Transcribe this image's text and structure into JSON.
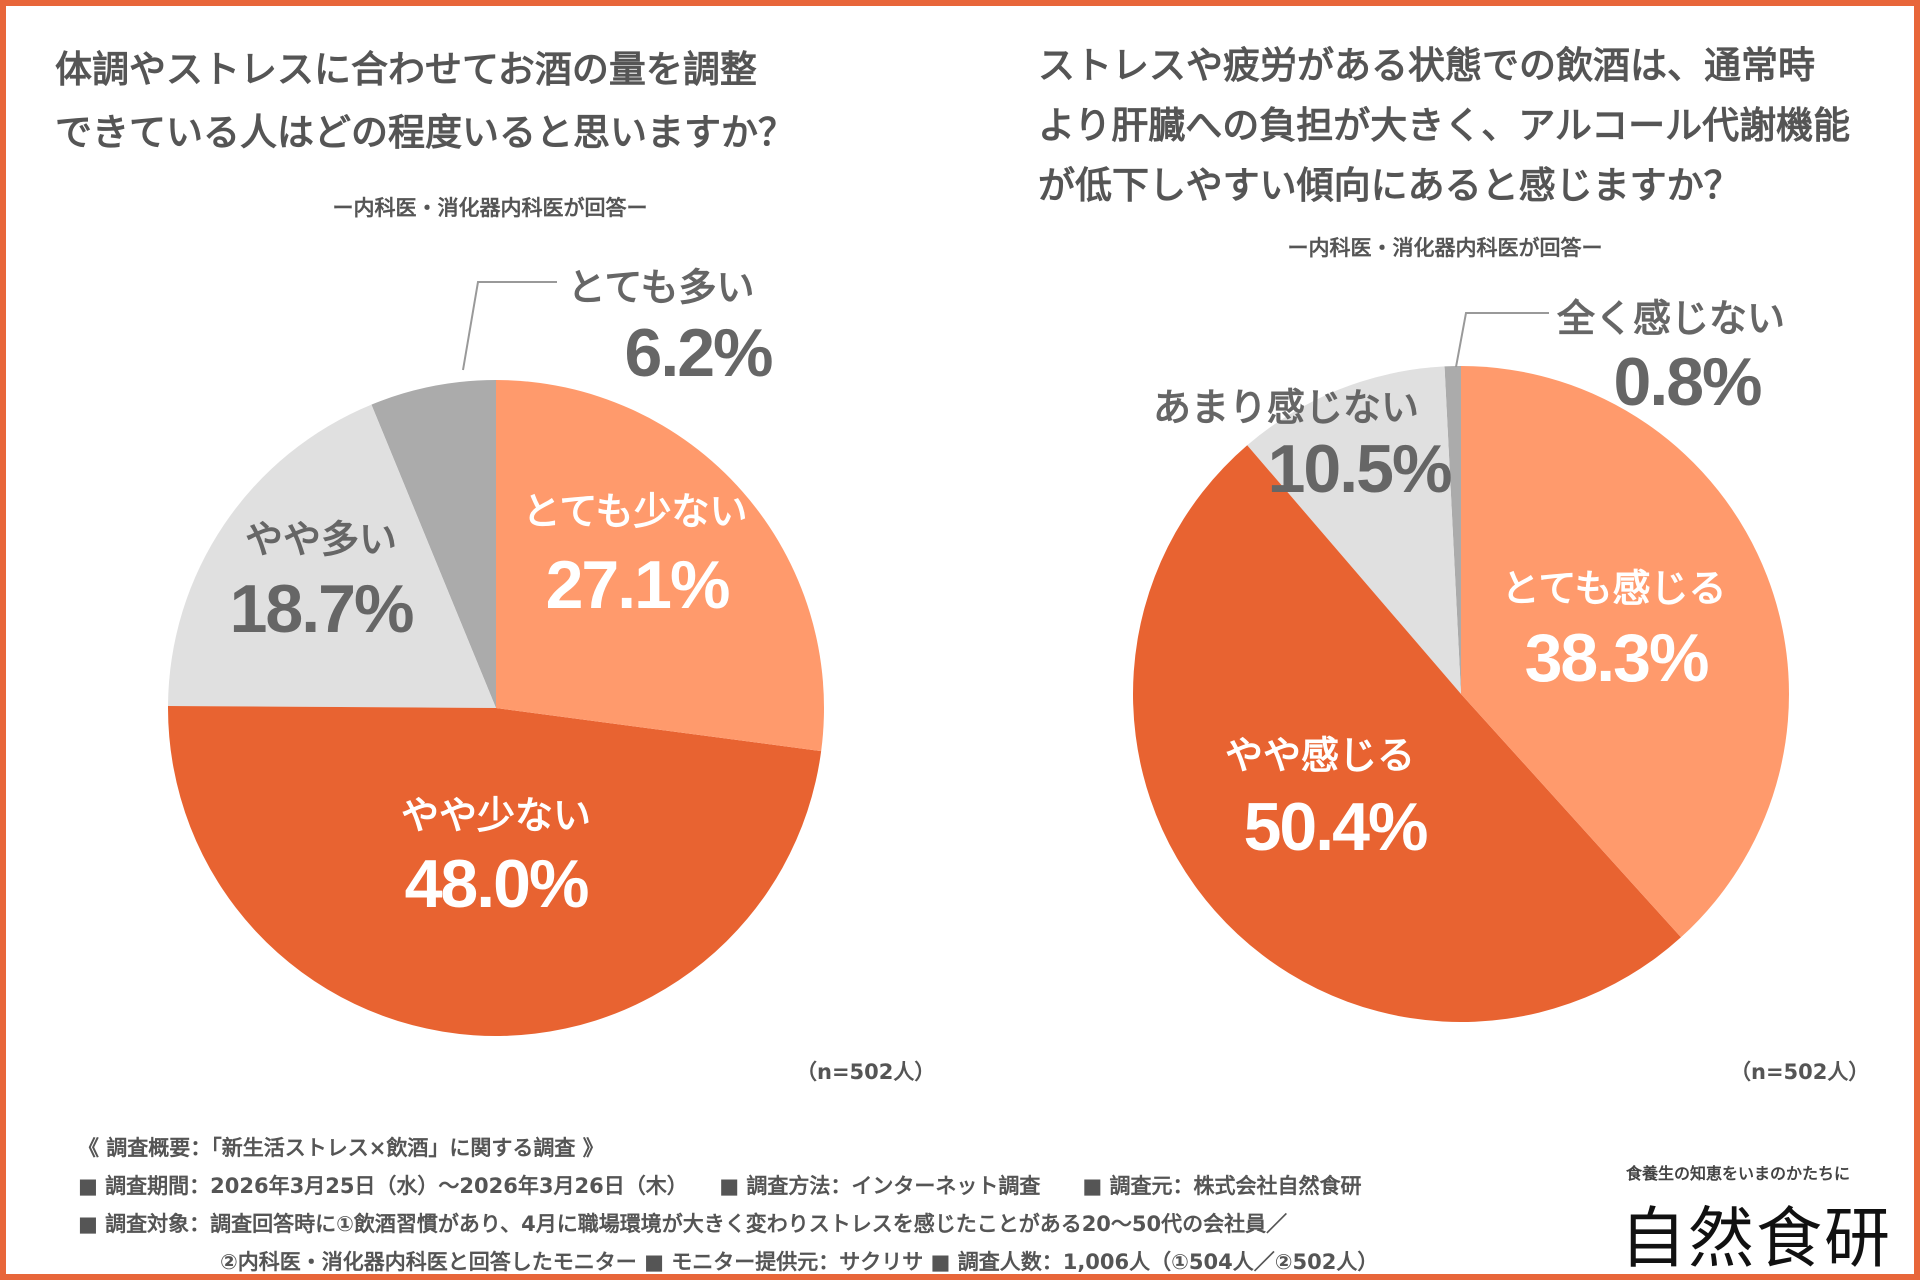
{
  "colors": {
    "border": "#E8663A",
    "salmon": "#FF9A6C",
    "orange": "#E86331",
    "light_gray": "#E0E0E0",
    "gray": "#ABABAB",
    "text_gray": "#666666"
  },
  "chart_data": [
    {
      "type": "pie",
      "title": "体調やストレスに合わせてお酒の量を調整できている人はどの程度いると思いますか？",
      "title_lines": [
        "体調やストレスに合わせてお酒の量を調整",
        "できている人はどの程度いると思いますか？"
      ],
      "subtitle": "ー内科医・消化器内科医が回答ー",
      "note": "（n=502人）",
      "slices": [
        {
          "label": "とても少ない",
          "value": 27.1,
          "display": "27.1%",
          "color": "#FF9A6C",
          "text_color": "#FFFFFF"
        },
        {
          "label": "やや少ない",
          "value": 48.0,
          "display": "48.0%",
          "color": "#E86331",
          "text_color": "#FFFFFF"
        },
        {
          "label": "やや多い",
          "value": 18.7,
          "display": "18.7%",
          "color": "#E0E0E0",
          "text_color": "#666666"
        },
        {
          "label": "とても多い",
          "value": 6.2,
          "display": "6.2%",
          "color": "#ABABAB",
          "text_color": "#666666"
        }
      ]
    },
    {
      "type": "pie",
      "title": "ストレスや疲労がある状態での飲酒は、通常時より肝臓への負担が大きく、アルコール代謝機能が低下しやすい傾向にあると感じますか？",
      "title_lines": [
        "ストレスや疲労がある状態での飲酒は、通常時",
        "より肝臓への負担が大きく、アルコール代謝機能",
        "が低下しやすい傾向にあると感じますか？"
      ],
      "subtitle": "ー内科医・消化器内科医が回答ー",
      "note": "（n=502人）",
      "slices": [
        {
          "label": "とても感じる",
          "value": 38.3,
          "display": "38.3%",
          "color": "#FF9A6C",
          "text_color": "#FFFFFF"
        },
        {
          "label": "やや感じる",
          "value": 50.4,
          "display": "50.4%",
          "color": "#E86331",
          "text_color": "#FFFFFF"
        },
        {
          "label": "あまり感じない",
          "value": 10.5,
          "display": "10.5%",
          "color": "#E0E0E0",
          "text_color": "#666666"
        },
        {
          "label": "全く感じない",
          "value": 0.8,
          "display": "0.8%",
          "color": "#ABABAB",
          "text_color": "#666666"
        }
      ]
    }
  ],
  "footer": {
    "heading": "《 調査概要：「新生活ストレス×飲酒」に関する調査 》",
    "line1": "■ 調査期間：2026年3月25日（水）～2026年3月26日（木）　　■ 調査方法：インターネット調査　　■ 調査元：株式会社自然食研",
    "line2": "■ 調査対象：調査回答時に①飲酒習慣があり、4月に職場環境が大きく変わりストレスを感じたことがある20～50代の会社員／",
    "line3": "②内科医・消化器内科医と回答したモニター ■ モニター提供元：サクリサ ■ 調査人数：1,006人（①504人／②502人）"
  },
  "logo": {
    "tagline": "食養生の知恵をいまのかたちに",
    "name": "自然食研"
  }
}
